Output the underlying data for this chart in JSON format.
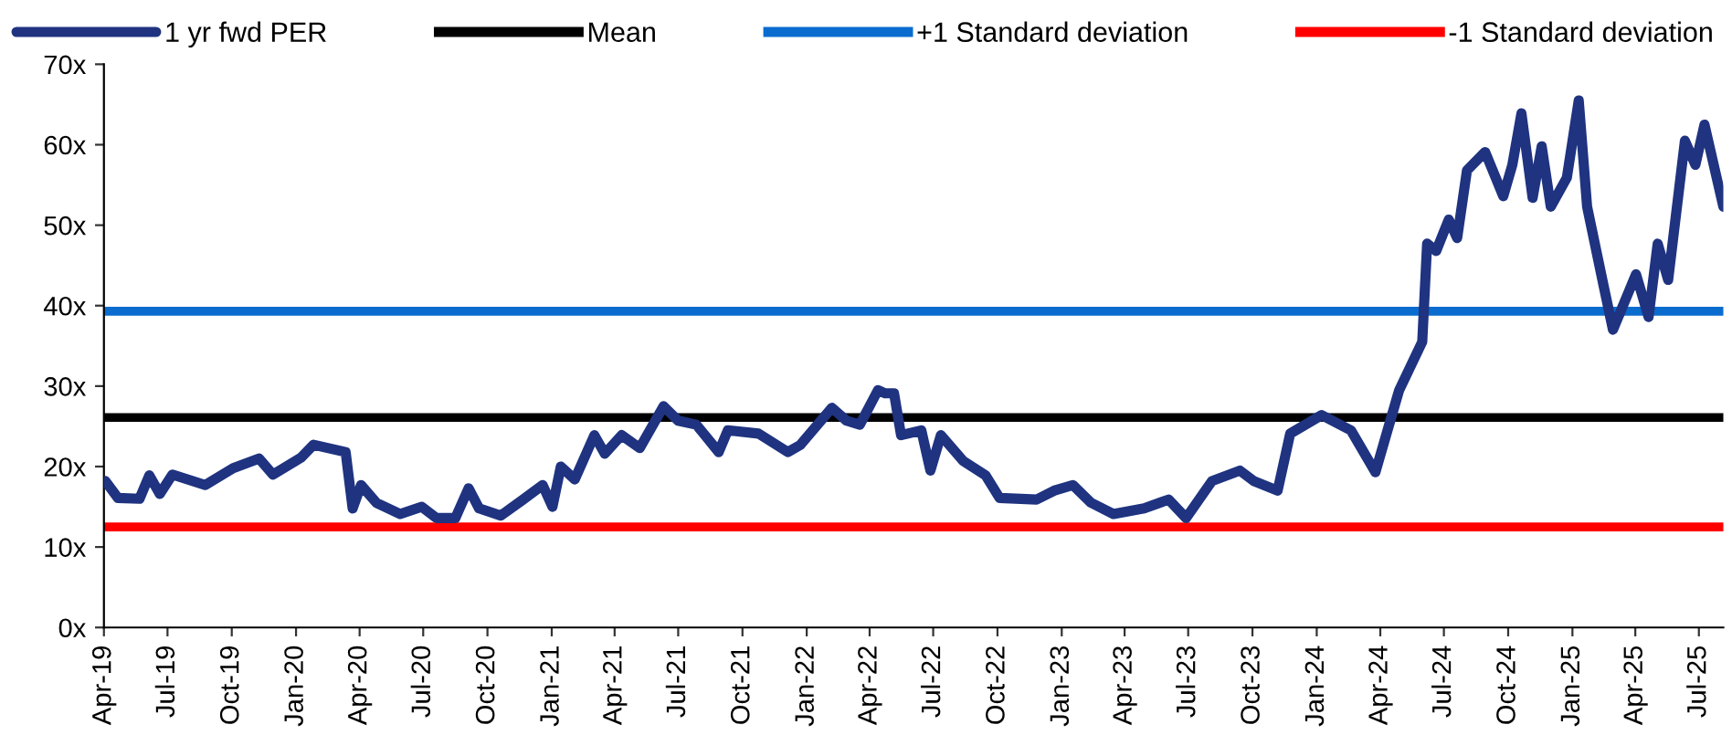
{
  "chart_data": {
    "type": "line",
    "x": [
      "2019-04-03",
      "2019-04-21",
      "2019-05-22",
      "2019-06-05",
      "2019-06-20",
      "2019-07-08",
      "2019-08-24",
      "2019-10-03",
      "2019-11-09",
      "2019-11-29",
      "2020-01-08",
      "2020-01-26",
      "2020-03-12",
      "2020-03-22",
      "2020-04-03",
      "2020-04-25",
      "2020-05-29",
      "2020-06-29",
      "2020-07-20",
      "2020-08-16",
      "2020-09-04",
      "2020-09-19",
      "2020-10-20",
      "2020-11-21",
      "2020-12-19",
      "2021-01-02",
      "2021-01-14",
      "2021-02-03",
      "2021-03-03",
      "2021-03-18",
      "2021-04-11",
      "2021-05-07",
      "2021-06-10",
      "2021-07-01",
      "2021-07-27",
      "2021-08-28",
      "2021-09-10",
      "2021-10-24",
      "2021-12-05",
      "2021-12-23",
      "2022-02-06",
      "2022-02-27",
      "2022-03-18",
      "2022-04-13",
      "2022-04-23",
      "2022-05-06",
      "2022-05-16",
      "2022-06-14",
      "2022-06-27",
      "2022-07-12",
      "2022-08-13",
      "2022-09-14",
      "2022-10-04",
      "2022-11-26",
      "2022-12-21",
      "2023-01-17",
      "2023-02-12",
      "2023-03-16",
      "2023-04-29",
      "2023-06-03",
      "2023-06-28",
      "2023-08-04",
      "2023-09-13",
      "2023-10-03",
      "2023-11-06",
      "2023-11-24",
      "2024-01-08",
      "2024-02-19",
      "2024-03-25",
      "2024-04-28",
      "2024-05-31",
      "2024-06-07",
      "2024-06-20",
      "2024-07-08",
      "2024-07-20",
      "2024-08-03",
      "2024-08-29",
      "2024-09-24",
      "2024-10-07",
      "2024-10-20",
      "2024-11-05",
      "2024-11-18",
      "2024-12-01",
      "2024-12-24",
      "2025-01-10",
      "2025-01-22",
      "2025-02-15",
      "2025-02-28",
      "2025-04-02",
      "2025-04-20",
      "2025-05-03",
      "2025-05-18",
      "2025-06-11",
      "2025-06-26",
      "2025-07-09",
      "2025-08-05"
    ],
    "series": [
      {
        "name": "1 yr fwd PER",
        "color": "#1f3380",
        "values": [
          18.2,
          16.1,
          16,
          18.9,
          16.6,
          19,
          17.7,
          19.8,
          21,
          19,
          21.1,
          22.7,
          21.8,
          14.8,
          17.7,
          15.5,
          14.1,
          15,
          13.6,
          13.6,
          17.3,
          14.8,
          13.9,
          15.9,
          17.7,
          15,
          20,
          18.4,
          23.9,
          21.6,
          23.9,
          22.3,
          27.5,
          25.7,
          25.2,
          21.8,
          24.5,
          24.1,
          21.8,
          22.7,
          27.3,
          25.7,
          25.2,
          29.5,
          29.1,
          29.1,
          23.9,
          24.5,
          19.5,
          23.9,
          20.7,
          18.9,
          16.1,
          15.9,
          17,
          17.7,
          15.5,
          14.1,
          14.8,
          15.9,
          13.6,
          18.2,
          19.5,
          18.2,
          17,
          24.1,
          26.4,
          24.5,
          19.3,
          29.5,
          35.5,
          47.7,
          46.8,
          50.7,
          48.4,
          56.8,
          59.1,
          53.6,
          57.5,
          63.9,
          53.4,
          59.8,
          52.3,
          55.9,
          65.5,
          52.3,
          42.3,
          37,
          43.9,
          38.6,
          47.7,
          43.2,
          60.5,
          57.5,
          62.5,
          52.3
        ]
      }
    ],
    "ref_lines": [
      {
        "axis": "y",
        "value": 26.1,
        "label": "Mean",
        "color": "#000000"
      },
      {
        "axis": "y",
        "value": 39.3,
        "label": "+1 Standard deviation",
        "color": "#0a6ccf"
      },
      {
        "axis": "y",
        "value": 12.5,
        "label": "-1 Standard deviation",
        "color": "#ff0000"
      }
    ],
    "xlim": [
      "2019-04-01",
      "2025-08-05"
    ],
    "xticks": [
      {
        "value": "2019-04-01",
        "label": "Apr-19"
      },
      {
        "value": "2019-07-01",
        "label": "Jul-19"
      },
      {
        "value": "2019-10-01",
        "label": "Oct-19"
      },
      {
        "value": "2020-01-01",
        "label": "Jan-20"
      },
      {
        "value": "2020-04-01",
        "label": "Apr-20"
      },
      {
        "value": "2020-07-01",
        "label": "Jul-20"
      },
      {
        "value": "2020-10-01",
        "label": "Oct-20"
      },
      {
        "value": "2021-01-01",
        "label": "Jan-21"
      },
      {
        "value": "2021-04-01",
        "label": "Apr-21"
      },
      {
        "value": "2021-07-01",
        "label": "Jul-21"
      },
      {
        "value": "2021-10-01",
        "label": "Oct-21"
      },
      {
        "value": "2022-01-01",
        "label": "Jan-22"
      },
      {
        "value": "2022-04-01",
        "label": "Apr-22"
      },
      {
        "value": "2022-07-01",
        "label": "Jul-22"
      },
      {
        "value": "2022-10-01",
        "label": "Oct-22"
      },
      {
        "value": "2023-01-01",
        "label": "Jan-23"
      },
      {
        "value": "2023-04-01",
        "label": "Apr-23"
      },
      {
        "value": "2023-07-01",
        "label": "Jul-23"
      },
      {
        "value": "2023-10-01",
        "label": "Oct-23"
      },
      {
        "value": "2024-01-01",
        "label": "Jan-24"
      },
      {
        "value": "2024-04-01",
        "label": "Apr-24"
      },
      {
        "value": "2024-07-01",
        "label": "Jul-24"
      },
      {
        "value": "2024-10-01",
        "label": "Oct-24"
      },
      {
        "value": "2025-01-01",
        "label": "Jan-25"
      },
      {
        "value": "2025-04-01",
        "label": "Apr-25"
      },
      {
        "value": "2025-07-01",
        "label": "Jul-25"
      }
    ],
    "ylim": [
      0,
      70
    ],
    "yticks": [
      {
        "value": 0,
        "label": "0x"
      },
      {
        "value": 10,
        "label": "10x"
      },
      {
        "value": 20,
        "label": "20x"
      },
      {
        "value": 30,
        "label": "30x"
      },
      {
        "value": 40,
        "label": "40x"
      },
      {
        "value": 50,
        "label": "50x"
      },
      {
        "value": 60,
        "label": "60x"
      },
      {
        "value": 70,
        "label": "70x"
      }
    ],
    "grid": false,
    "legend": "top",
    "line_style": "solid"
  }
}
